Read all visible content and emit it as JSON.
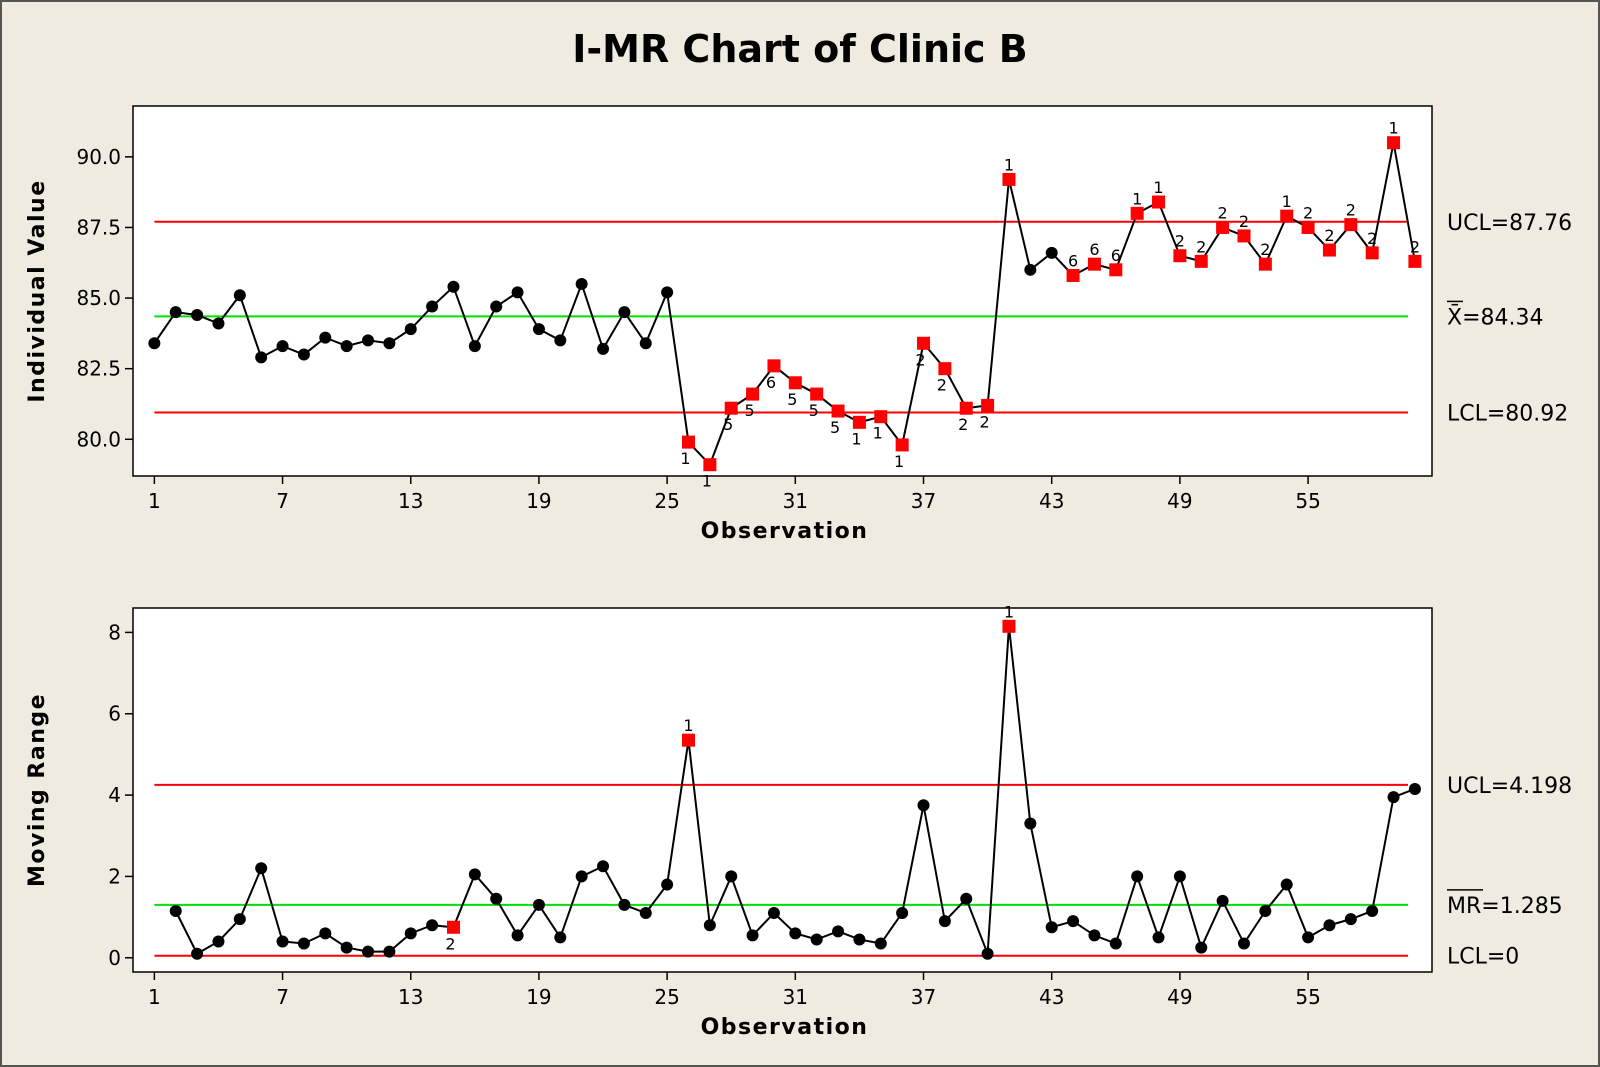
{
  "chart_data": {
    "type": "line",
    "title": "I-MR Chart of Clinic B",
    "colors": {
      "background": "#efebe1",
      "plot_background": "#ffffff",
      "control_limit": "#ff0000",
      "center_line": "#00e000",
      "series_line": "#000000",
      "in_control_marker": "#000000",
      "out_of_control_marker": "#ff0000"
    },
    "panels": [
      {
        "id": "individual",
        "ylabel": "Individual Value",
        "xlabel": "Observation",
        "ylim": [
          78.7,
          91.8
        ],
        "xlim": [
          0,
          60.8
        ],
        "yticks": [
          80.0,
          82.5,
          85.0,
          87.5,
          90.0
        ],
        "ytick_labels": [
          "80.0",
          "82.5",
          "85.0",
          "87.5",
          "90.0"
        ],
        "xticks": [
          1,
          7,
          13,
          19,
          25,
          31,
          37,
          43,
          49,
          55
        ],
        "xtick_labels": [
          "1",
          "7",
          "13",
          "19",
          "25",
          "31",
          "37",
          "43",
          "49",
          "55"
        ],
        "ucl": {
          "value": 87.7,
          "label": "UCL=87.76"
        },
        "center": {
          "value": 84.35,
          "label": "X̄=84.34"
        },
        "lcl": {
          "value": 80.95,
          "label": "LCL=80.92"
        },
        "x": [
          1,
          2,
          3,
          4,
          5,
          6,
          7,
          8,
          9,
          10,
          11,
          12,
          13,
          14,
          15,
          16,
          17,
          18,
          19,
          20,
          21,
          22,
          23,
          24,
          25,
          26,
          27,
          28,
          29,
          30,
          31,
          32,
          33,
          34,
          35,
          36,
          37,
          38,
          39,
          40,
          41,
          42,
          43,
          44,
          45,
          46,
          47,
          48,
          49,
          50,
          51,
          52,
          53,
          54,
          55,
          56,
          57,
          58,
          59,
          60
        ],
        "values": [
          83.4,
          84.5,
          84.4,
          84.1,
          85.1,
          82.9,
          83.3,
          83.0,
          83.6,
          83.3,
          83.5,
          83.4,
          83.9,
          84.7,
          85.4,
          83.3,
          84.7,
          85.2,
          83.9,
          83.5,
          85.5,
          83.2,
          84.5,
          83.4,
          85.2,
          79.9,
          79.1,
          81.1,
          81.6,
          82.6,
          82.0,
          81.6,
          81.0,
          80.6,
          80.8,
          79.8,
          83.4,
          82.5,
          81.1,
          81.2,
          89.2,
          86.0,
          86.6,
          85.8,
          86.2,
          86.0,
          88.0,
          88.4,
          86.5,
          86.3,
          87.5,
          87.2,
          86.2,
          87.9,
          87.5,
          86.7,
          87.6,
          86.6,
          90.5,
          86.3
        ],
        "flags": [
          "",
          "",
          "",
          "",
          "",
          "",
          "",
          "",
          "",
          "",
          "",
          "",
          "",
          "",
          "",
          "",
          "",
          "",
          "",
          "",
          "",
          "",
          "",
          "",
          "",
          "1",
          "1",
          "5",
          "5",
          "6",
          "5",
          "5",
          "5",
          "1",
          "1",
          "1",
          "2",
          "2",
          "2",
          "2",
          "1",
          "",
          "",
          "6",
          "6",
          "6",
          "1",
          "1",
          "2",
          "2",
          "2",
          "2",
          "2",
          "1",
          "2",
          "2",
          "2",
          "2",
          "1",
          "2"
        ],
        "flag_pos": [
          "",
          "",
          "",
          "",
          "",
          "",
          "",
          "",
          "",
          "",
          "",
          "",
          "",
          "",
          "",
          "",
          "",
          "",
          "",
          "",
          "",
          "",
          "",
          "",
          "",
          "below",
          "below",
          "below",
          "below",
          "below",
          "below",
          "below",
          "below",
          "below",
          "below",
          "below",
          "below",
          "below",
          "below",
          "below",
          "above",
          "",
          "",
          "above",
          "above",
          "above",
          "above",
          "above",
          "above",
          "above",
          "above",
          "above",
          "above",
          "above",
          "above",
          "above",
          "above",
          "above",
          "above",
          "above"
        ]
      },
      {
        "id": "moving-range",
        "ylabel": "Moving Range",
        "xlabel": "Observation",
        "ylim": [
          -0.35,
          8.6
        ],
        "xlim": [
          0,
          60.8
        ],
        "yticks": [
          0,
          2,
          4,
          6,
          8
        ],
        "ytick_labels": [
          "0",
          "2",
          "4",
          "6",
          "8"
        ],
        "xticks": [
          1,
          7,
          13,
          19,
          25,
          31,
          37,
          43,
          49,
          55
        ],
        "xtick_labels": [
          "1",
          "7",
          "13",
          "19",
          "25",
          "31",
          "37",
          "43",
          "49",
          "55"
        ],
        "ucl": {
          "value": 4.25,
          "label": "UCL=4.198"
        },
        "center": {
          "value": 1.3,
          "label": "MR=1.285"
        },
        "lcl": {
          "value": 0.05,
          "label": "LCL=0"
        },
        "x": [
          2,
          3,
          4,
          5,
          6,
          7,
          8,
          9,
          10,
          11,
          12,
          13,
          14,
          15,
          16,
          17,
          18,
          19,
          20,
          21,
          22,
          23,
          24,
          25,
          26,
          27,
          28,
          29,
          30,
          31,
          32,
          33,
          34,
          35,
          36,
          37,
          38,
          39,
          40,
          41,
          42,
          43,
          44,
          45,
          46,
          47,
          48,
          49,
          50,
          51,
          52,
          53,
          54,
          55,
          56,
          57,
          58,
          59,
          60
        ],
        "values": [
          1.15,
          0.1,
          0.4,
          0.95,
          2.2,
          0.4,
          0.35,
          0.6,
          0.25,
          0.15,
          0.15,
          0.6,
          0.8,
          0.75,
          2.05,
          1.45,
          0.55,
          1.3,
          0.5,
          2.0,
          2.25,
          1.3,
          1.1,
          1.8,
          5.35,
          0.8,
          2.0,
          0.55,
          1.1,
          0.6,
          0.45,
          0.65,
          0.45,
          0.35,
          1.1,
          3.75,
          0.9,
          1.45,
          0.1,
          8.15,
          3.3,
          0.75,
          0.9,
          0.55,
          0.35,
          2.0,
          0.5,
          2.0,
          0.25,
          1.4,
          0.35,
          1.15,
          1.8,
          0.5,
          0.8,
          0.95,
          1.15,
          3.95,
          4.15
        ],
        "flags": [
          "",
          "",
          "",
          "",
          "",
          "",
          "",
          "",
          "",
          "",
          "",
          "",
          "",
          "2",
          "",
          "",
          "",
          "",
          "",
          "",
          "",
          "",
          "",
          "",
          "1",
          "",
          "",
          "",
          "",
          "",
          "",
          "",
          "",
          "",
          "",
          "",
          "",
          "",
          "",
          "1",
          "",
          "",
          "",
          "",
          "",
          "",
          "",
          "",
          "",
          "",
          "",
          "",
          "",
          "",
          "",
          "",
          "",
          "",
          ""
        ],
        "flag_pos": [
          "",
          "",
          "",
          "",
          "",
          "",
          "",
          "",
          "",
          "",
          "",
          "",
          "",
          "below",
          "",
          "",
          "",
          "",
          "",
          "",
          "",
          "",
          "",
          "",
          "above",
          "",
          "",
          "",
          "",
          "",
          "",
          "",
          "",
          "",
          "",
          "",
          "",
          "",
          "",
          "above",
          "",
          "",
          "",
          "",
          "",
          "",
          "",
          "",
          "",
          "",
          "",
          "",
          "",
          "",
          "",
          "",
          "",
          "",
          ""
        ]
      }
    ]
  }
}
